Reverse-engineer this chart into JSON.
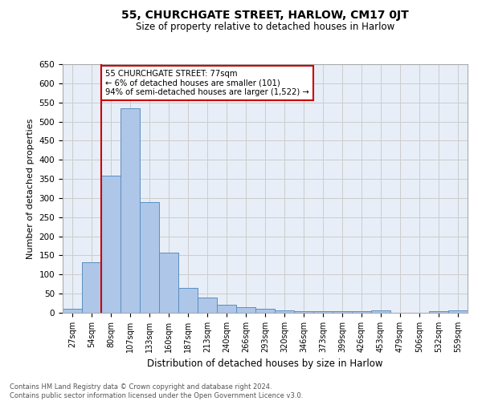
{
  "title1": "55, CHURCHGATE STREET, HARLOW, CM17 0JT",
  "title2": "Size of property relative to detached houses in Harlow",
  "xlabel": "Distribution of detached houses by size in Harlow",
  "ylabel": "Number of detached properties",
  "categories": [
    "27sqm",
    "54sqm",
    "80sqm",
    "107sqm",
    "133sqm",
    "160sqm",
    "187sqm",
    "213sqm",
    "240sqm",
    "266sqm",
    "293sqm",
    "320sqm",
    "346sqm",
    "373sqm",
    "399sqm",
    "426sqm",
    "453sqm",
    "479sqm",
    "506sqm",
    "532sqm",
    "559sqm"
  ],
  "values": [
    10,
    133,
    358,
    535,
    290,
    158,
    65,
    40,
    20,
    15,
    10,
    7,
    5,
    5,
    5,
    5,
    6,
    0,
    0,
    5,
    6
  ],
  "bar_color": "#aec6e8",
  "bar_edge_color": "#5a8fc2",
  "grid_color": "#cccccc",
  "bg_color": "#e8eef7",
  "property_size": 77,
  "annotation_line1": "55 CHURCHGATE STREET: 77sqm",
  "annotation_line2": "← 6% of detached houses are smaller (101)",
  "annotation_line3": "94% of semi-detached houses are larger (1,522) →",
  "vline_x_index": 2,
  "vline_color": "#cc0000",
  "annotation_box_color": "#cc0000",
  "ylim": [
    0,
    650
  ],
  "yticks": [
    0,
    50,
    100,
    150,
    200,
    250,
    300,
    350,
    400,
    450,
    500,
    550,
    600,
    650
  ],
  "footer1": "Contains HM Land Registry data © Crown copyright and database right 2024.",
  "footer2": "Contains public sector information licensed under the Open Government Licence v3.0."
}
